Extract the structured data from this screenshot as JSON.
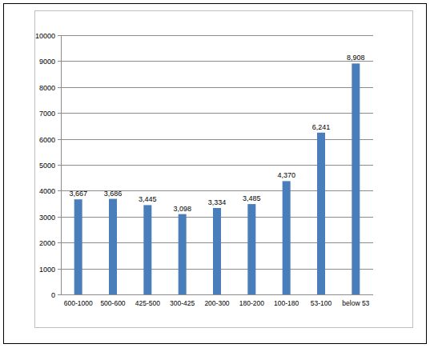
{
  "chart_data": {
    "type": "bar",
    "categories": [
      "600-1000",
      "500-600",
      "425-500",
      "300-425",
      "200-300",
      "180-200",
      "100-180",
      "53-100",
      "below 53"
    ],
    "values": [
      3667,
      3686,
      3445,
      3098,
      3334,
      3485,
      4370,
      6241,
      8908
    ],
    "value_labels": [
      "3,667",
      "3,686",
      "3,445",
      "3,098",
      "3,334",
      "3,485",
      "4,370",
      "6,241",
      "8,908"
    ],
    "color": "#4a7ebb",
    "ylim": [
      0,
      10000
    ],
    "yticks": [
      0,
      1000,
      2000,
      3000,
      4000,
      5000,
      6000,
      7000,
      8000,
      9000,
      10000
    ],
    "grid": true,
    "data_labels": true
  }
}
